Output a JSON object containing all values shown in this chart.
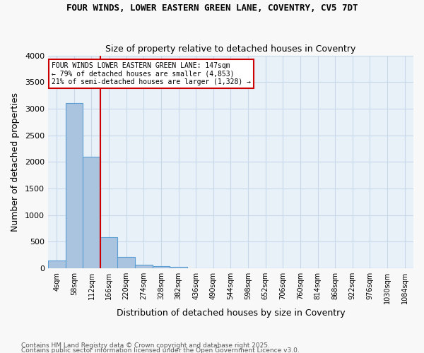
{
  "title": "FOUR WINDS, LOWER EASTERN GREEN LANE, COVENTRY, CV5 7DT",
  "subtitle": "Size of property relative to detached houses in Coventry",
  "xlabel": "Distribution of detached houses by size in Coventry",
  "ylabel": "Number of detached properties",
  "bin_labels": [
    "4sqm",
    "58sqm",
    "112sqm",
    "166sqm",
    "220sqm",
    "274sqm",
    "328sqm",
    "382sqm",
    "436sqm",
    "490sqm",
    "544sqm",
    "598sqm",
    "652sqm",
    "706sqm",
    "760sqm",
    "814sqm",
    "868sqm",
    "922sqm",
    "976sqm",
    "1030sqm",
    "1084sqm"
  ],
  "bar_heights": [
    150,
    3100,
    2100,
    580,
    210,
    70,
    40,
    30,
    0,
    0,
    0,
    0,
    0,
    0,
    0,
    0,
    0,
    0,
    0,
    0,
    0
  ],
  "bar_color": "#aac4e0",
  "bar_edge_color": "#5a9fd4",
  "ylim": [
    0,
    4000
  ],
  "yticks": [
    0,
    500,
    1000,
    1500,
    2000,
    2500,
    3000,
    3500,
    4000
  ],
  "property_line_color": "#cc0000",
  "annotation_title": "FOUR WINDS LOWER EASTERN GREEN LANE: 147sqm",
  "annotation_line1": "← 79% of detached houses are smaller (4,853)",
  "annotation_line2": "21% of semi-detached houses are larger (1,328) →",
  "annotation_box_color": "#ffffff",
  "annotation_box_edge": "#cc0000",
  "grid_color": "#c8d8e8",
  "bg_color": "#e8f0f8",
  "footnote1": "Contains HM Land Registry data © Crown copyright and database right 2025.",
  "footnote2": "Contains public sector information licensed under the Open Government Licence v3.0."
}
